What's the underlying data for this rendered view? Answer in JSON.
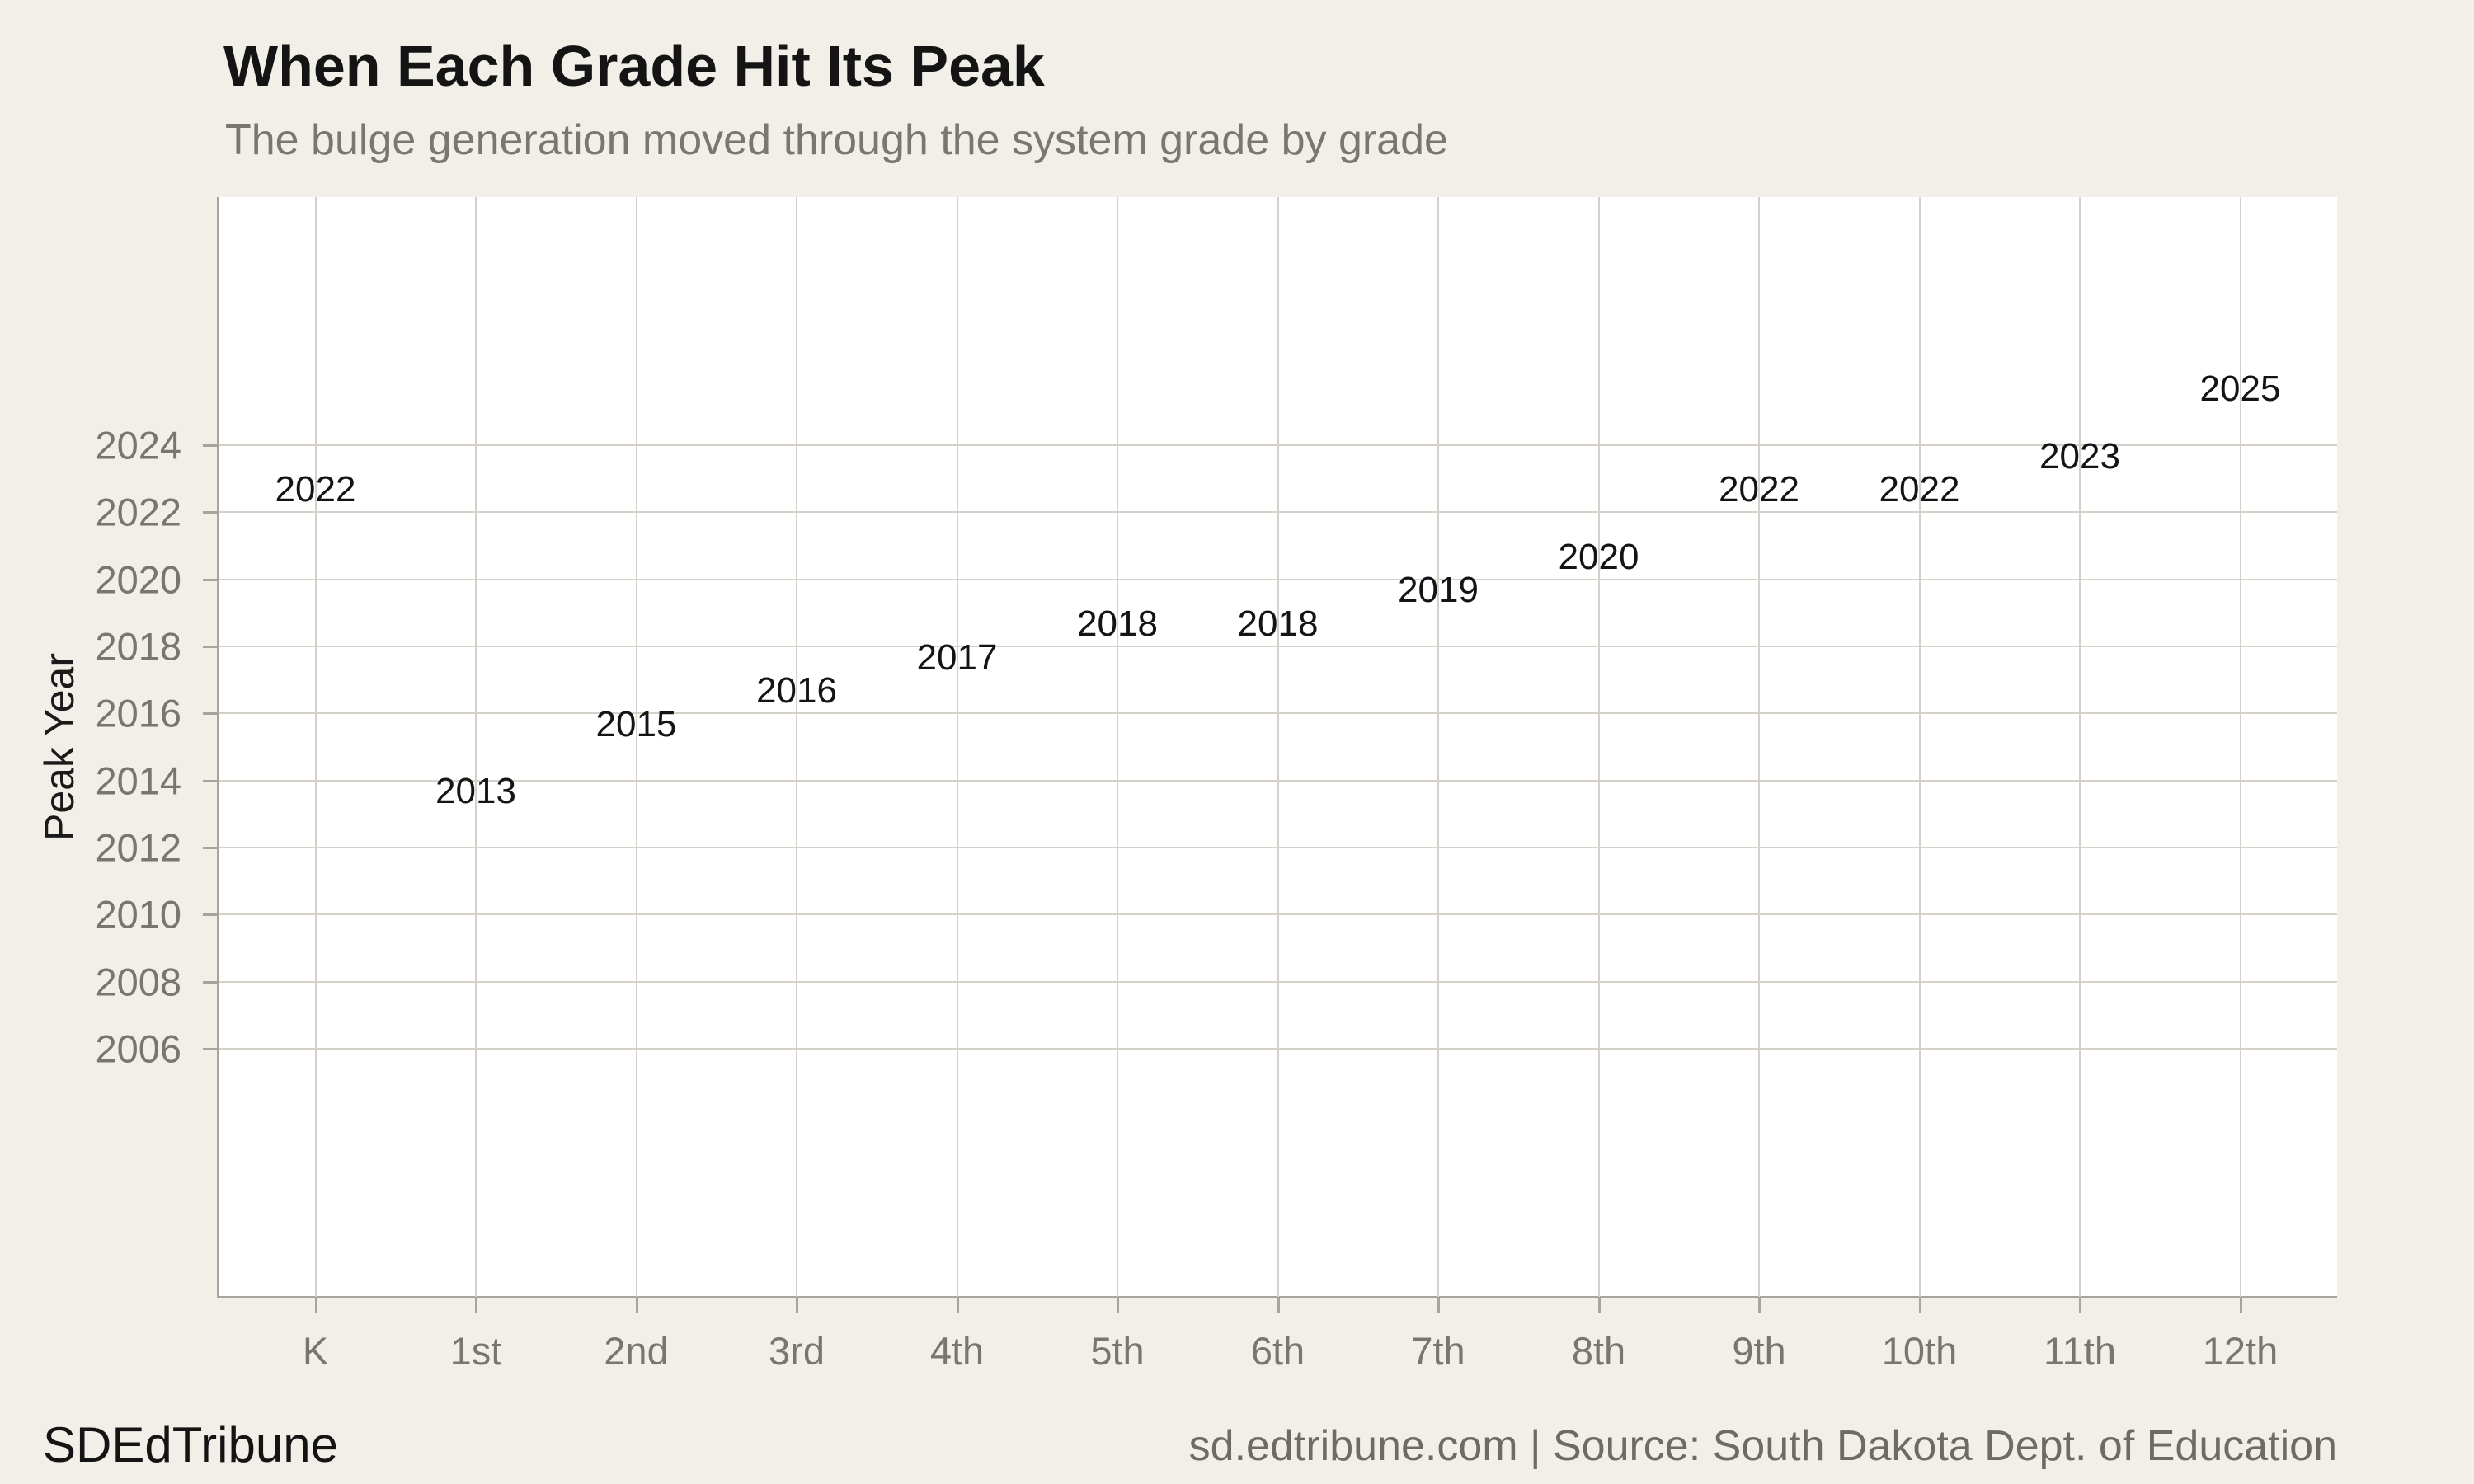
{
  "header": {
    "title": "When Each Grade Hit Its Peak",
    "subtitle": "The bulge generation moved through the system grade by grade"
  },
  "footer": {
    "brand": "SDEdTribune",
    "source": "sd.edtribune.com | Source: South Dakota Dept. of Education"
  },
  "chart_data": {
    "type": "scatter",
    "subtype": "text-label-scatter",
    "title": "When Each Grade Hit Its Peak",
    "subtitle": "The bulge generation moved through the system grade by grade",
    "xlabel": "",
    "ylabel": "Peak Year",
    "categories": [
      "K",
      "1st",
      "2nd",
      "3rd",
      "4th",
      "5th",
      "6th",
      "7th",
      "8th",
      "9th",
      "10th",
      "11th",
      "12th"
    ],
    "values": [
      2022,
      2013,
      2015,
      2016,
      2017,
      2018,
      2018,
      2019,
      2020,
      2022,
      2022,
      2023,
      2025
    ],
    "point_labels": [
      "2022",
      "2013",
      "2015",
      "2016",
      "2017",
      "2018",
      "2018",
      "2019",
      "2020",
      "2022",
      "2022",
      "2023",
      "2025"
    ],
    "yticks": [
      2006,
      2008,
      2010,
      2012,
      2014,
      2016,
      2018,
      2020,
      2022,
      2024
    ],
    "ylim": [
      1998.6,
      2031.4
    ],
    "grid": "both",
    "legend": "none",
    "colors": {
      "background": "#f2efe9",
      "plot_background": "#ffffff",
      "gridline": "#d5d0c8",
      "axis_line": "#a9a39b",
      "tick_label": "#7a756d",
      "data_label": "#141414",
      "title": "#141414",
      "subtitle": "#7b766f",
      "footer_source": "#6f6a63"
    }
  }
}
